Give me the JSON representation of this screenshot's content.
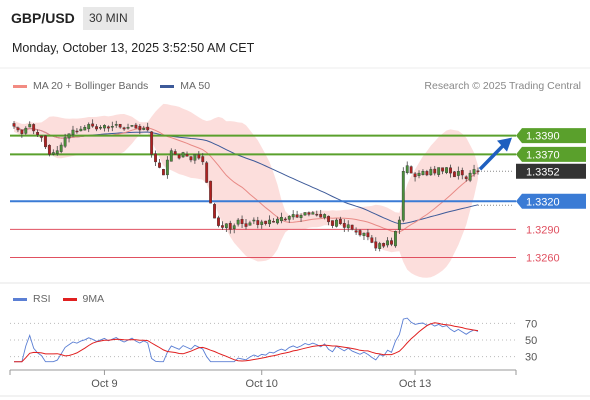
{
  "header": {
    "symbol": "GBP/USD",
    "timeframe": "30 MIN"
  },
  "timestamp": "Monday, October 13, 2025 3:52:50 AM CET",
  "copyright": "Research © 2025 Trading Central",
  "legend": {
    "price": [
      {
        "label": "MA 20 + Bollinger Bands",
        "color": "#f28b82"
      },
      {
        "label": "MA 50",
        "color": "#3d5a99"
      }
    ],
    "rsi": [
      {
        "label": "RSI",
        "color": "#5b7fd4"
      },
      {
        "label": "9MA",
        "color": "#e02020"
      }
    ]
  },
  "chart_data": [
    {
      "type": "candlestick",
      "ylim": [
        1.3236,
        1.3428
      ],
      "x_ticks": [
        "Oct 9",
        "Oct 10",
        "Oct 13"
      ],
      "levels": [
        {
          "value": 1.339,
          "label": "1.3390",
          "kind": "resistance",
          "color": "#5aa02c"
        },
        {
          "value": 1.337,
          "label": "1.3370",
          "kind": "resistance",
          "color": "#5aa02c"
        },
        {
          "value": 1.3352,
          "label": "1.3352",
          "kind": "last-price",
          "color": "#333333"
        },
        {
          "value": 1.332,
          "label": "1.3320",
          "kind": "pivot",
          "color": "#3a7bd5"
        },
        {
          "value": 1.329,
          "label": "1.3290",
          "kind": "support",
          "color": "#e05060"
        },
        {
          "value": 1.326,
          "label": "1.3260",
          "kind": "support",
          "color": "#e05060"
        }
      ],
      "closes": [
        1.34,
        1.3396,
        1.3392,
        1.3398,
        1.3402,
        1.3395,
        1.3391,
        1.3388,
        1.3378,
        1.337,
        1.3372,
        1.3374,
        1.338,
        1.3388,
        1.3392,
        1.3396,
        1.3394,
        1.3397,
        1.3399,
        1.3402,
        1.34,
        1.3397,
        1.3399,
        1.3401,
        1.3398,
        1.34,
        1.3402,
        1.3399,
        1.3397,
        1.3399,
        1.3401,
        1.3398,
        1.3396,
        1.3398,
        1.3396,
        1.337,
        1.3362,
        1.3356,
        1.3348,
        1.3364,
        1.3374,
        1.337,
        1.3366,
        1.3372,
        1.3368,
        1.3364,
        1.337,
        1.3366,
        1.3362,
        1.334,
        1.3318,
        1.3302,
        1.3294,
        1.3292,
        1.3296,
        1.329,
        1.3294,
        1.33,
        1.3296,
        1.3293,
        1.3297,
        1.33,
        1.3295,
        1.3298,
        1.3296,
        1.33,
        1.3298,
        1.3301,
        1.3303,
        1.33,
        1.3304,
        1.3306,
        1.3303,
        1.3305,
        1.3308,
        1.3306,
        1.3308,
        1.3306,
        1.3303,
        1.3306,
        1.3298,
        1.3294,
        1.33,
        1.3296,
        1.3292,
        1.3295,
        1.329,
        1.3287,
        1.3284,
        1.3286,
        1.3282,
        1.3276,
        1.327,
        1.3275,
        1.3272,
        1.3278,
        1.3274,
        1.3288,
        1.33,
        1.3352,
        1.3358,
        1.335,
        1.3346,
        1.335,
        1.3352,
        1.3348,
        1.3354,
        1.335,
        1.3356,
        1.3352,
        1.3356,
        1.335,
        1.3346,
        1.3352,
        1.3348,
        1.3344,
        1.335,
        1.3354,
        1.3352
      ]
    },
    {
      "type": "line",
      "title": "RSI",
      "ylim": [
        20,
        80
      ],
      "y_ticks": [
        "70",
        "50",
        "30"
      ],
      "guides": [
        70,
        50,
        30
      ]
    }
  ]
}
